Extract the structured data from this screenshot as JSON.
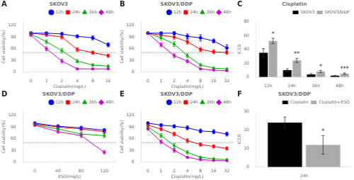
{
  "chart_data": [
    {
      "type": "line",
      "title": "SKOV3",
      "xlabel": "Cisplatin(mg/L)",
      "ylabel": "Cell viability(%)",
      "categories": [
        "0",
        "1",
        "2",
        "4",
        "8",
        "16"
      ],
      "series": [
        {
          "name": "12h",
          "color": "#0000FF",
          "marker": "circle",
          "values": [
            100,
            100,
            98,
            92,
            88,
            70
          ],
          "err": [
            3,
            3,
            4,
            4,
            5,
            5
          ]
        },
        {
          "name": "24h",
          "color": "#FF0000",
          "marker": "square",
          "values": [
            100,
            96,
            90,
            58,
            50,
            42
          ],
          "err": [
            3,
            4,
            5,
            5,
            4,
            4
          ]
        },
        {
          "name": "36h",
          "color": "#00AA00",
          "marker": "triangle",
          "values": [
            98,
            78,
            55,
            28,
            18,
            15
          ],
          "err": [
            3,
            5,
            6,
            4,
            3,
            3
          ]
        },
        {
          "name": "48h",
          "color": "#CC00CC",
          "marker": "diamond",
          "values": [
            95,
            60,
            28,
            8,
            8,
            8
          ],
          "err": [
            3,
            5,
            5,
            2,
            2,
            2
          ]
        }
      ],
      "ylim": [
        0,
        130
      ],
      "yticks": [
        0,
        30,
        60,
        90,
        120
      ],
      "hline": {
        "y": 50,
        "color": "#555555",
        "line_style": "dotted"
      },
      "grid": false,
      "legend": "upper right",
      "annotations": [
        {
          "text": "A"
        }
      ]
    },
    {
      "type": "line",
      "title": "SKOV3/DDP",
      "xlabel": "Cisplatin(mg/L)",
      "ylabel": "Cell viability(%)",
      "categories": [
        "0",
        "1",
        "2",
        "4",
        "8",
        "16",
        "32"
      ],
      "series": [
        {
          "name": "12h",
          "color": "#0000FF",
          "marker": "circle",
          "values": [
            100,
            100,
            100,
            92,
            88,
            80,
            62
          ],
          "err": [
            3,
            3,
            4,
            6,
            8,
            5,
            8
          ]
        },
        {
          "name": "24h",
          "color": "#FF0000",
          "marker": "square",
          "values": [
            100,
            95,
            90,
            78,
            58,
            52,
            50
          ],
          "err": [
            3,
            4,
            5,
            6,
            5,
            5,
            4
          ]
        },
        {
          "name": "36h",
          "color": "#00AA00",
          "marker": "triangle",
          "values": [
            100,
            88,
            72,
            42,
            18,
            10,
            8
          ],
          "err": [
            3,
            5,
            6,
            5,
            3,
            2,
            2
          ]
        },
        {
          "name": "48h",
          "color": "#CC00CC",
          "marker": "diamond",
          "values": [
            100,
            70,
            42,
            28,
            8,
            5,
            3
          ],
          "err": [
            3,
            5,
            5,
            4,
            2,
            1,
            1
          ]
        }
      ],
      "ylim": [
        0,
        130
      ],
      "yticks": [
        0,
        30,
        60,
        90,
        120
      ],
      "hline": {
        "y": 50,
        "color": "#555555",
        "line_style": "dotted"
      },
      "grid": false,
      "legend": "upper right",
      "annotations": [
        {
          "text": "B"
        }
      ]
    },
    {
      "type": "bar",
      "title": "Cisplatin",
      "ylabel": "IC50",
      "categories": [
        "12h",
        "24h",
        "36h",
        "48h"
      ],
      "series": [
        {
          "name": "SKOV3",
          "color": "#000000",
          "values": [
            35,
            10,
            4,
            2
          ],
          "err": [
            6,
            2,
            1,
            0.5
          ]
        },
        {
          "name": "SKOV3/DDP",
          "color": "#AAAAAA",
          "values": [
            52,
            24,
            8,
            5
          ],
          "err": [
            4,
            3,
            1.5,
            1
          ]
        }
      ],
      "ylim": [
        0,
        80
      ],
      "yticks": [
        0,
        20,
        40,
        60,
        80
      ],
      "grid": false,
      "legend": "upper right",
      "annotations": [
        {
          "text": "C"
        },
        {
          "text": "*",
          "category": "12h",
          "series": "SKOV3/DDP"
        },
        {
          "text": "**",
          "category": "24h",
          "series": "SKOV3/DDP"
        },
        {
          "text": "*",
          "category": "36h",
          "series": "SKOV3/DDP"
        },
        {
          "text": "***",
          "category": "48h",
          "series": "SKOV3/DDP"
        }
      ]
    },
    {
      "type": "line",
      "title": "SKOV3/DDP",
      "xlabel": "ESO(mg/L)",
      "ylabel": "Cell viability(%)",
      "categories": [
        "0",
        "40",
        "80",
        "120"
      ],
      "series": [
        {
          "name": "12h",
          "color": "#0000FF",
          "marker": "circle",
          "values": [
            100,
            92,
            88,
            82
          ],
          "err": [
            3,
            4,
            4,
            4
          ]
        },
        {
          "name": "24h",
          "color": "#FF0000",
          "marker": "square",
          "values": [
            98,
            90,
            85,
            78
          ],
          "err": [
            3,
            4,
            4,
            5
          ]
        },
        {
          "name": "36h",
          "color": "#00AA00",
          "marker": "triangle",
          "values": [
            96,
            85,
            72,
            68
          ],
          "err": [
            3,
            4,
            5,
            5
          ]
        },
        {
          "name": "48h",
          "color": "#CC00CC",
          "marker": "diamond",
          "values": [
            95,
            78,
            68,
            25
          ],
          "err": [
            3,
            4,
            5,
            4
          ]
        }
      ],
      "ylim": [
        0,
        130
      ],
      "yticks": [
        0,
        30,
        60,
        90,
        120
      ],
      "hline": {
        "y": 50,
        "color": "#555555",
        "line_style": "dotted"
      },
      "grid": false,
      "legend": "upper right",
      "annotations": [
        {
          "text": "D"
        }
      ]
    },
    {
      "type": "line",
      "title": "SKOV3/DDP",
      "xlabel": "Cisplatin(mg/L)",
      "ylabel": "Cell viability(%)",
      "categories": [
        "0",
        "1",
        "2",
        "4",
        "8",
        "16",
        "32"
      ],
      "series": [
        {
          "name": "12h",
          "color": "#0000FF",
          "marker": "circle",
          "values": [
            100,
            95,
            92,
            88,
            80,
            78,
            72
          ],
          "err": [
            3,
            3,
            4,
            5,
            5,
            5,
            5
          ]
        },
        {
          "name": "24h",
          "color": "#FF0000",
          "marker": "square",
          "values": [
            95,
            85,
            72,
            55,
            45,
            40,
            35
          ],
          "err": [
            3,
            4,
            5,
            5,
            4,
            4,
            4
          ]
        },
        {
          "name": "36h",
          "color": "#00AA00",
          "marker": "triangle",
          "values": [
            90,
            68,
            42,
            25,
            12,
            8,
            6
          ],
          "err": [
            3,
            5,
            6,
            4,
            3,
            2,
            2
          ]
        },
        {
          "name": "48h",
          "color": "#CC00CC",
          "marker": "diamond",
          "values": [
            85,
            52,
            30,
            12,
            6,
            4,
            3
          ],
          "err": [
            3,
            5,
            5,
            3,
            2,
            1,
            1
          ]
        }
      ],
      "ylim": [
        0,
        130
      ],
      "yticks": [
        0,
        30,
        60,
        90,
        120
      ],
      "hline": {
        "y": 50,
        "color": "#555555",
        "line_style": "dotted"
      },
      "grid": false,
      "legend": "upper right",
      "annotations": [
        {
          "text": "E"
        }
      ]
    },
    {
      "type": "bar",
      "title": "SKOV3/DDP",
      "ylabel": "IC50",
      "categories": [
        "24h"
      ],
      "series": [
        {
          "name": "Cisplatin",
          "color": "#000000",
          "values": [
            24
          ],
          "err": [
            3
          ]
        },
        {
          "name": "Cisplatin+ESO",
          "color": "#AAAAAA",
          "values": [
            12
          ],
          "err": [
            5
          ]
        }
      ],
      "ylim": [
        0,
        30
      ],
      "yticks": [
        0,
        10,
        20,
        30
      ],
      "grid": false,
      "legend": "upper right",
      "annotations": [
        {
          "text": "F"
        },
        {
          "text": "*",
          "category": "24h",
          "series": "Cisplatin+ESO"
        }
      ]
    }
  ]
}
